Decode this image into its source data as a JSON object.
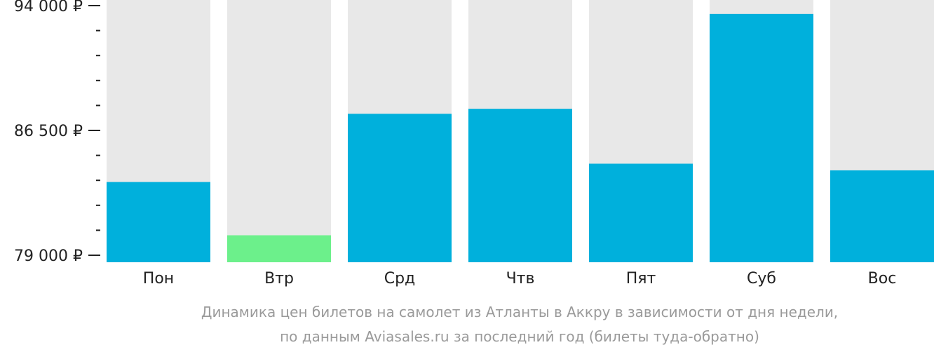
{
  "chart_data": {
    "type": "bar",
    "categories": [
      "Пон",
      "Втр",
      "Срд",
      "Чтв",
      "Пят",
      "Суб",
      "Вос"
    ],
    "values": [
      83400,
      80200,
      87500,
      87800,
      84500,
      93500,
      84100
    ],
    "highlight_index": 1,
    "ylim": [
      79000,
      94000
    ],
    "yticks": [
      {
        "value": 79000,
        "label": "79 000 ₽"
      },
      {
        "value": 86500,
        "label": "86 500 ₽"
      },
      {
        "value": 94000,
        "label": "94 000 ₽"
      }
    ],
    "minor_tick_step": 1500,
    "caption_lines": [
      "Динамика цен билетов на самолет из Атланты в Аккру в зависимости от дня недели,",
      "по данным Aviasales.ru за последний год (билеты туда-обратно)"
    ],
    "colors": {
      "bar": "#00b0dc",
      "highlight": "#6cf08b",
      "background_column": "#e8e8e8",
      "text": "#222222",
      "caption": "#9a9a9a"
    }
  }
}
